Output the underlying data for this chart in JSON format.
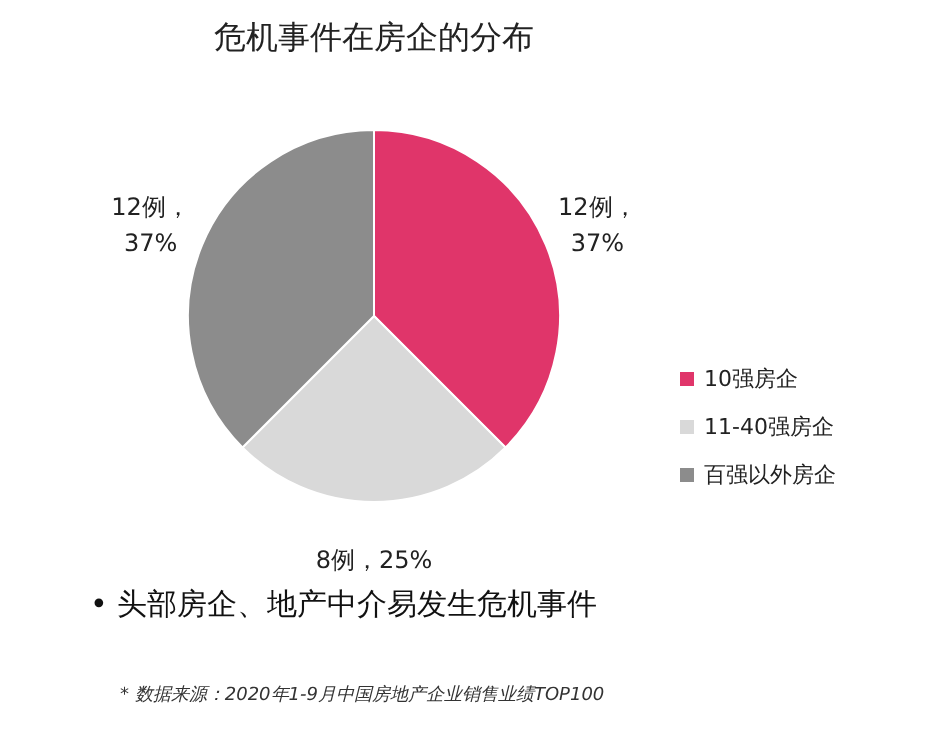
{
  "chart_data": {
    "type": "pie",
    "title": "危机事件在房企的分布",
    "categories": [
      "10强房企",
      "11-40强房企",
      "百强以外房企"
    ],
    "values": [
      12,
      8,
      12
    ],
    "colors": [
      "#e0356a",
      "#d9d9d9",
      "#8c8c8c"
    ],
    "value_labels": [
      "12例，\n37%",
      "8例，25%",
      "12例，\n37%"
    ],
    "legend": "right",
    "annotations": [
      "•  头部房企、地产中介易发生危机事件",
      "* 数据来源：2020年1-9月中国房地产企业销售业绩TOP100"
    ]
  }
}
